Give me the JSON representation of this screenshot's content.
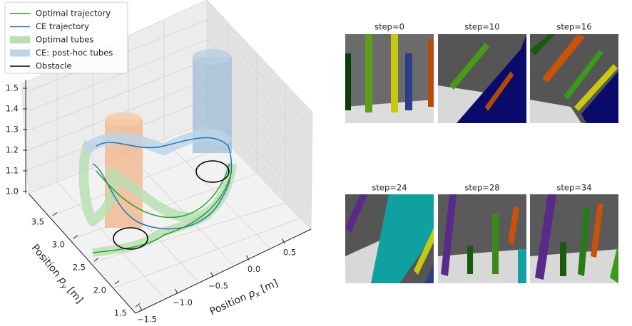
{
  "chart_data": {
    "type": "line3d",
    "legend": {
      "position": "upper left",
      "entries": [
        {
          "name": "Optimal trajectory",
          "color": "#2ca02c",
          "kind": "line"
        },
        {
          "name": "CE trajectory",
          "color": "#1f77b4",
          "kind": "line"
        },
        {
          "name": "Optimal tubes",
          "color": "#b7dfb0",
          "kind": "patch"
        },
        {
          "name": "CE: post-hoc tubes",
          "color": "#bcd3e8",
          "kind": "patch"
        },
        {
          "name": "Obstacle",
          "color": "#000000",
          "kind": "line"
        }
      ]
    },
    "xlabel": {
      "text": "Position ",
      "var": "p",
      "sub": "x",
      "unit": " [m]"
    },
    "ylabel": {
      "text": "Position ",
      "var": "p",
      "sub": "y",
      "unit": " [m]"
    },
    "xlim": [
      -1.6,
      0.8
    ],
    "ylim": [
      1.4,
      3.8
    ],
    "zlim": [
      0.98,
      1.52
    ],
    "xticks": [
      {
        "value": -1.5,
        "label": "−1.5"
      },
      {
        "value": -1.0,
        "label": "−1.0"
      },
      {
        "value": -0.5,
        "label": "−0.5"
      },
      {
        "value": 0.0,
        "label": "0.0"
      },
      0.5
    ],
    "yticks": [
      1.5,
      {
        "value": 2.0,
        "label": "2.0"
      },
      2.5,
      {
        "value": 3.0,
        "label": "3.0"
      },
      3.5
    ],
    "zticks": [
      {
        "value": 1.0,
        "label": "1.0"
      },
      1.1,
      1.2,
      1.3,
      1.4,
      1.5
    ],
    "grid": true
  },
  "panels": [
    "step=0",
    "step=10",
    "step=16",
    "step=24",
    "step=28",
    "step=34"
  ]
}
